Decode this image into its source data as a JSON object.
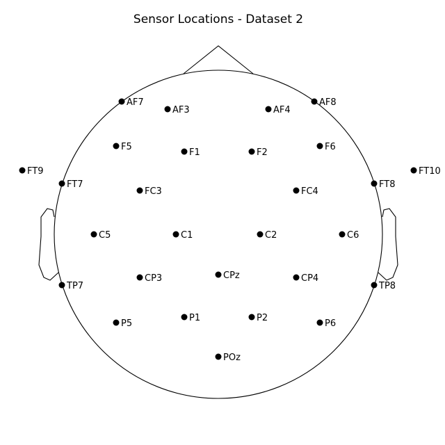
{
  "title": "Sensor Locations - Dataset 2",
  "sensors": [
    {
      "label": "AF7"
    },
    {
      "label": "AF3"
    },
    {
      "label": "AF4"
    },
    {
      "label": "AF8"
    },
    {
      "label": "F5"
    },
    {
      "label": "F1"
    },
    {
      "label": "F2"
    },
    {
      "label": "F6"
    },
    {
      "label": "FT9"
    },
    {
      "label": "FT7"
    },
    {
      "label": "FC3"
    },
    {
      "label": "FC4"
    },
    {
      "label": "FT8"
    },
    {
      "label": "FT10"
    },
    {
      "label": "C5"
    },
    {
      "label": "C1"
    },
    {
      "label": "C2"
    },
    {
      "label": "C6"
    },
    {
      "label": "TP7"
    },
    {
      "label": "CP3"
    },
    {
      "label": "CPz"
    },
    {
      "label": "CP4"
    },
    {
      "label": "TP8"
    },
    {
      "label": "P5"
    },
    {
      "label": "P1"
    },
    {
      "label": "P2"
    },
    {
      "label": "P6"
    },
    {
      "label": "POz"
    }
  ]
}
